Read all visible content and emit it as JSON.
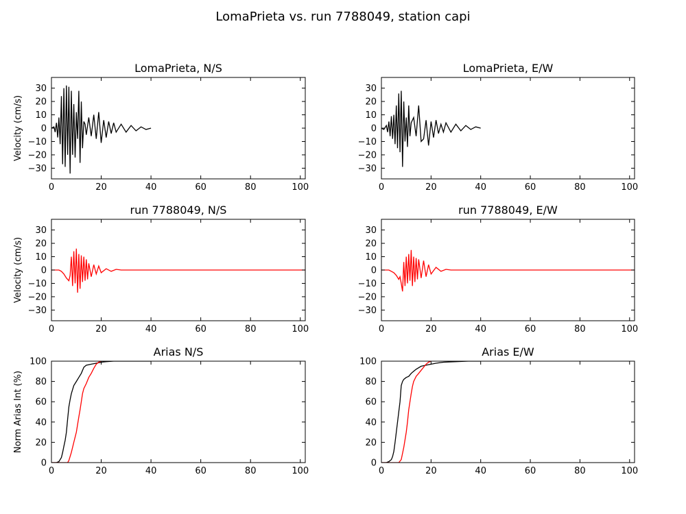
{
  "suptitle": "LomaPrieta vs. run 7788049, station capi",
  "colors": {
    "recorded": "#000000",
    "simulated": "#ff0000",
    "axes": "#000000",
    "background": "#ffffff"
  },
  "chart_data": [
    {
      "type": "line",
      "title": "LomaPrieta, N/S",
      "ylabel": "Velocity (cm/s)",
      "xlabel": "",
      "xlim": [
        0,
        102
      ],
      "ylim": [
        -38,
        38
      ],
      "xticks": [
        "0",
        "20",
        "40",
        "60",
        "80",
        "100"
      ],
      "yticks": [
        "30",
        "20",
        "10",
        "0",
        "−10",
        "−20",
        "−30"
      ],
      "series": [
        {
          "color": "#000000",
          "x": [
            0,
            1,
            1.5,
            2,
            2.5,
            3,
            3.5,
            4,
            4.5,
            5,
            5.5,
            6,
            6.5,
            7,
            7.5,
            8,
            8.5,
            9,
            9.5,
            10,
            10.5,
            11,
            11.5,
            12,
            12.5,
            13,
            13.5,
            14,
            15,
            16,
            17,
            18,
            19,
            20,
            21,
            22,
            23,
            24,
            25,
            26,
            28,
            30,
            32,
            34,
            36,
            38,
            40
          ],
          "y": [
            0,
            1,
            -3,
            4,
            -7,
            8,
            -12,
            24,
            -27,
            30,
            -29,
            32,
            -20,
            31,
            -34,
            28,
            -20,
            18,
            -22,
            12,
            -8,
            28,
            -26,
            20,
            -15,
            5,
            3,
            -5,
            8,
            -6,
            10,
            -8,
            12,
            -11,
            6,
            -7,
            5,
            -4,
            4,
            -3,
            3,
            -3,
            2,
            -2,
            1,
            -1,
            0
          ]
        }
      ]
    },
    {
      "type": "line",
      "title": "LomaPrieta, E/W",
      "ylabel": "",
      "xlabel": "",
      "xlim": [
        0,
        102
      ],
      "ylim": [
        -38,
        38
      ],
      "xticks": [
        "0",
        "20",
        "40",
        "60",
        "80",
        "100"
      ],
      "yticks": [
        "30",
        "20",
        "10",
        "0",
        "−10",
        "−20",
        "−30"
      ],
      "series": [
        {
          "color": "#000000",
          "x": [
            0,
            1,
            2,
            2.5,
            3,
            3.5,
            4,
            4.5,
            5,
            5.5,
            6,
            6.5,
            7,
            7.5,
            8,
            8.5,
            9,
            9.5,
            10,
            10.5,
            11,
            11.5,
            12,
            13,
            14,
            15,
            16,
            17,
            18,
            19,
            20,
            21,
            22,
            23,
            24,
            25,
            26,
            28,
            30,
            32,
            34,
            36,
            38,
            40
          ],
          "y": [
            0,
            -1,
            2,
            -3,
            5,
            -6,
            9,
            -8,
            10,
            -12,
            17,
            -15,
            26,
            -18,
            28,
            -29,
            20,
            -10,
            8,
            -14,
            17,
            -6,
            4,
            8,
            -6,
            17,
            -10,
            -8,
            6,
            -13,
            5,
            -7,
            6,
            -4,
            3,
            -3,
            4,
            -3,
            3,
            -2,
            2,
            -1,
            1,
            0
          ]
        }
      ]
    },
    {
      "type": "line",
      "title": "run 7788049, N/S",
      "ylabel": "Velocity (cm/s)",
      "xlabel": "",
      "xlim": [
        0,
        102
      ],
      "ylim": [
        -38,
        38
      ],
      "xticks": [
        "0",
        "20",
        "40",
        "60",
        "80",
        "100"
      ],
      "yticks": [
        "30",
        "20",
        "10",
        "0",
        "−10",
        "−20",
        "−30"
      ],
      "series": [
        {
          "color": "#ff0000",
          "x": [
            0,
            3,
            4,
            5,
            6,
            7,
            7.5,
            8,
            8.5,
            9,
            9.5,
            10,
            10.5,
            11,
            11.5,
            12,
            12.5,
            13,
            13.5,
            14,
            14.5,
            15,
            16,
            17,
            18,
            19,
            20,
            22,
            24,
            26,
            28,
            30,
            40,
            60,
            80,
            102
          ],
          "y": [
            0,
            0,
            -1,
            -3,
            -6,
            -8,
            -4,
            10,
            -12,
            14,
            -10,
            16,
            -17,
            12,
            -14,
            11,
            -9,
            10,
            -8,
            8,
            -7,
            5,
            -5,
            4,
            -3,
            3,
            -2,
            1,
            -1,
            0.5,
            0,
            0,
            0,
            0,
            0,
            0
          ]
        }
      ]
    },
    {
      "type": "line",
      "title": "run 7788049, E/W",
      "ylabel": "",
      "xlabel": "",
      "xlim": [
        0,
        102
      ],
      "ylim": [
        -38,
        38
      ],
      "xticks": [
        "0",
        "20",
        "40",
        "60",
        "80",
        "100"
      ],
      "yticks": [
        "30",
        "20",
        "10",
        "0",
        "−10",
        "−20",
        "−30"
      ],
      "series": [
        {
          "color": "#ff0000",
          "x": [
            0,
            3,
            4,
            5,
            6,
            7,
            7.5,
            8,
            8.5,
            9,
            9.5,
            10,
            10.5,
            11,
            11.5,
            12,
            12.5,
            13,
            13.5,
            14,
            14.5,
            15,
            16,
            17,
            18,
            19,
            20,
            22,
            24,
            26,
            28,
            30,
            40,
            60,
            80,
            102
          ],
          "y": [
            0,
            0,
            -1,
            -2,
            -4,
            -7,
            -5,
            -10,
            -16,
            6,
            -12,
            10,
            -10,
            12,
            -8,
            15,
            -12,
            10,
            -9,
            9,
            -7,
            8,
            -6,
            7,
            -5,
            4,
            -3,
            2,
            -1,
            0.5,
            0,
            0,
            0,
            0,
            0,
            0
          ]
        }
      ]
    },
    {
      "type": "line",
      "title": "Arias N/S",
      "ylabel": "Norm Arias Int (%)",
      "xlabel": "",
      "xlim": [
        0,
        102
      ],
      "ylim": [
        0,
        100
      ],
      "xticks": [
        "0",
        "20",
        "40",
        "60",
        "80",
        "100"
      ],
      "yticks": [
        "100",
        "80",
        "60",
        "40",
        "20",
        "0"
      ],
      "series": [
        {
          "color": "#000000",
          "x": [
            0,
            2,
            3,
            4,
            4.5,
            5,
            5.5,
            6,
            6.5,
            7,
            7.5,
            8,
            8.5,
            9,
            10,
            11,
            12,
            13,
            14,
            16,
            18,
            20,
            22,
            25,
            30,
            40
          ],
          "y": [
            0,
            0,
            1,
            5,
            10,
            16,
            22,
            30,
            43,
            55,
            62,
            68,
            72,
            76,
            80,
            84,
            88,
            94,
            96,
            97,
            98,
            99,
            99.5,
            100,
            100,
            100
          ]
        },
        {
          "color": "#ff0000",
          "x": [
            0,
            6.5,
            7,
            8,
            9,
            10,
            11,
            11.5,
            12,
            12.5,
            13,
            14,
            15,
            16,
            17,
            18,
            19,
            20
          ],
          "y": [
            0,
            0,
            2,
            10,
            20,
            30,
            45,
            52,
            60,
            68,
            73,
            78,
            84,
            88,
            93,
            97,
            99,
            100
          ]
        }
      ]
    },
    {
      "type": "line",
      "title": "Arias E/W",
      "ylabel": "",
      "xlabel": "",
      "xlim": [
        0,
        102
      ],
      "ylim": [
        0,
        100
      ],
      "xticks": [
        "0",
        "20",
        "40",
        "60",
        "80",
        "100"
      ],
      "yticks": [
        "100",
        "80",
        "60",
        "40",
        "20",
        "0"
      ],
      "series": [
        {
          "color": "#000000",
          "x": [
            0,
            2,
            3,
            4,
            4.5,
            5,
            5.5,
            6,
            6.5,
            7,
            7.5,
            8,
            8.5,
            9,
            10,
            11,
            12,
            13,
            14,
            16,
            18,
            20,
            22,
            25,
            30,
            35,
            40
          ],
          "y": [
            0,
            0,
            1,
            3,
            6,
            11,
            20,
            30,
            40,
            50,
            60,
            76,
            80,
            82,
            84,
            85,
            88,
            90,
            92,
            95,
            96,
            97,
            98,
            99,
            99.5,
            100,
            100
          ]
        },
        {
          "color": "#ff0000",
          "x": [
            0,
            7,
            8,
            9,
            10,
            10.5,
            11,
            11.5,
            12,
            12.5,
            13,
            14,
            15,
            16,
            17,
            18,
            19,
            20
          ],
          "y": [
            0,
            0,
            3,
            15,
            30,
            40,
            52,
            60,
            68,
            75,
            80,
            85,
            88,
            91,
            94,
            97,
            99,
            100
          ]
        }
      ]
    }
  ]
}
